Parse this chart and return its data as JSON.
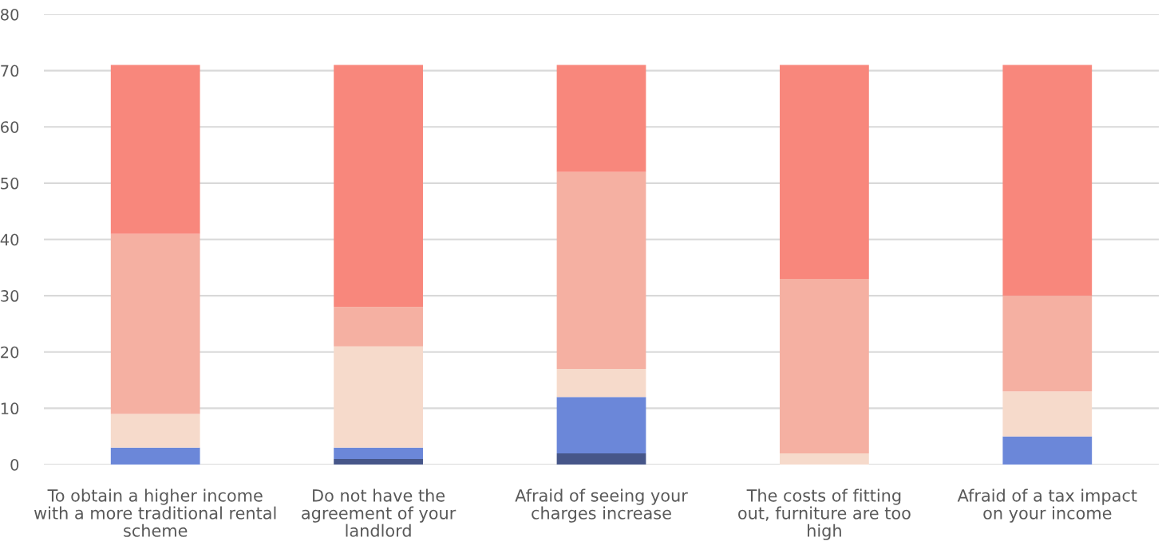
{
  "chart_data": {
    "type": "bar",
    "stacked": true,
    "categories": [
      "To obtain a higher income\nwith a more traditional rental\nscheme",
      "Do not have the\nagreement of your\nlandlord",
      "Afraid of seeing your\ncharges increase",
      "The costs of fitting\nout, furniture are too\nhigh",
      "Afraid of a tax impact\non your income"
    ],
    "series": [
      {
        "color": "#465689",
        "values": [
          0,
          1,
          2,
          0,
          0
        ]
      },
      {
        "color": "#6b87d9",
        "values": [
          3,
          2,
          10,
          0,
          5
        ]
      },
      {
        "color": "#f6dacb",
        "values": [
          6,
          18,
          5,
          2,
          8
        ]
      },
      {
        "color": "#f5b0a2",
        "values": [
          32,
          7,
          35,
          31,
          17
        ]
      },
      {
        "color": "#f8877c",
        "values": [
          30,
          43,
          19,
          38,
          41
        ]
      }
    ],
    "ylim": [
      0,
      80
    ],
    "yticks": [
      0,
      10,
      20,
      30,
      40,
      50,
      60,
      70,
      80
    ],
    "grid": "y"
  }
}
